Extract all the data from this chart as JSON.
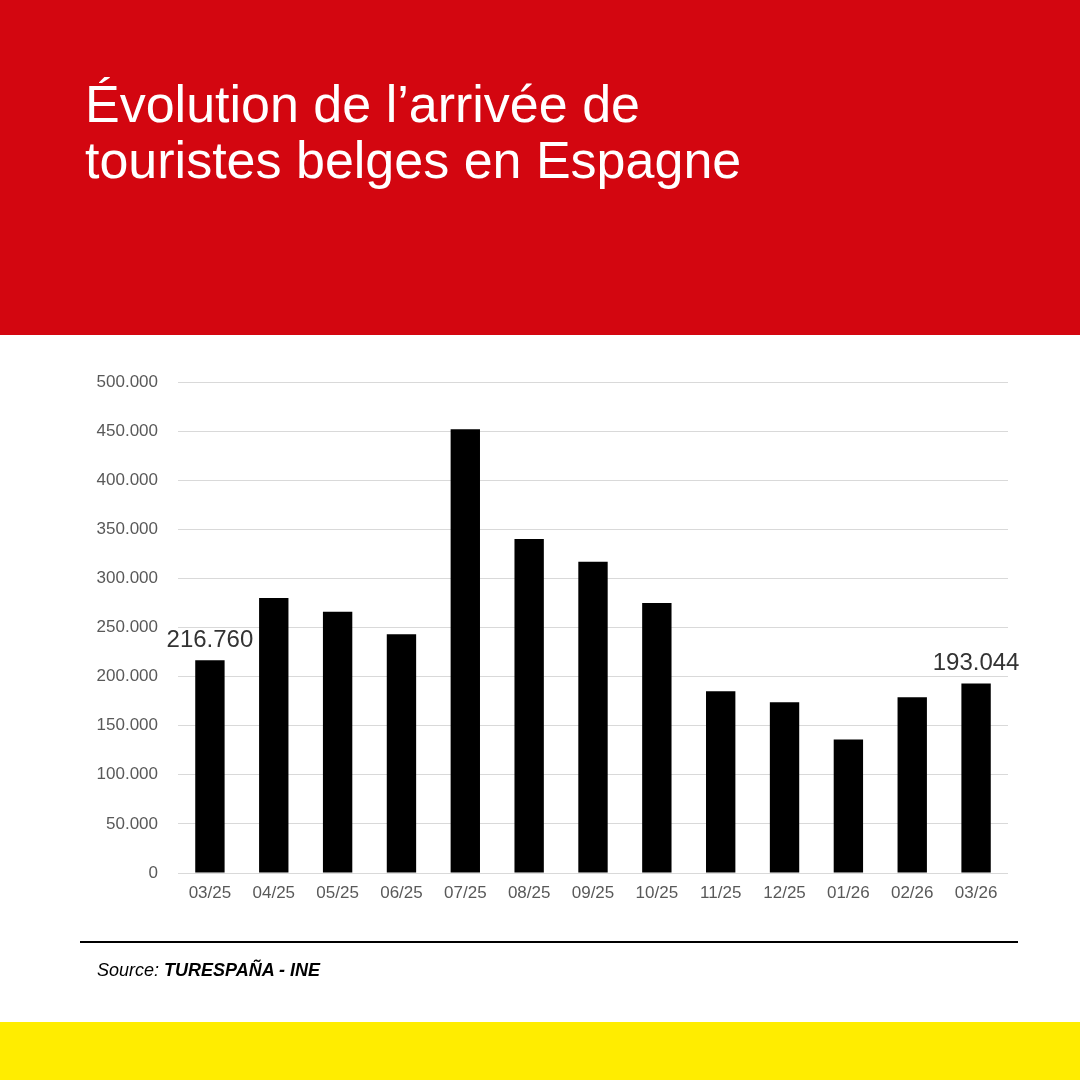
{
  "chart_data": {
    "type": "bar",
    "title": "Évolution de l’arrivée de touristes belges en Espagne",
    "categories": [
      "03/25",
      "04/25",
      "05/25",
      "06/25",
      "07/25",
      "08/25",
      "09/25",
      "10/25",
      "11/25",
      "12/25",
      "01/26",
      "02/26",
      "03/26"
    ],
    "values": [
      216760,
      280000,
      266000,
      243000,
      452000,
      340000,
      317000,
      275000,
      185000,
      174000,
      136000,
      179000,
      193044
    ],
    "color": "#000000",
    "value_labels": [
      "216.760",
      null,
      null,
      null,
      null,
      null,
      null,
      null,
      null,
      null,
      null,
      null,
      "193.044"
    ],
    "ylim": [
      0,
      500000
    ],
    "yticks": [
      0,
      {
        "value": 50000,
        "label": "50.000"
      },
      {
        "value": 100000,
        "label": "100.000"
      },
      {
        "value": 150000,
        "label": "150.000"
      },
      {
        "value": 200000,
        "label": "200.000"
      },
      {
        "value": 250000,
        "label": "250.000"
      },
      {
        "value": 300000,
        "label": "300.000"
      },
      {
        "value": 350000,
        "label": "350.000"
      },
      {
        "value": 400000,
        "label": "400.000"
      },
      {
        "value": 450000,
        "label": "450.000"
      },
      {
        "value": 500000,
        "label": "500.000"
      }
    ],
    "grid": "y",
    "annotations": [
      "Source: TURESPAÑA - INE"
    ]
  }
}
